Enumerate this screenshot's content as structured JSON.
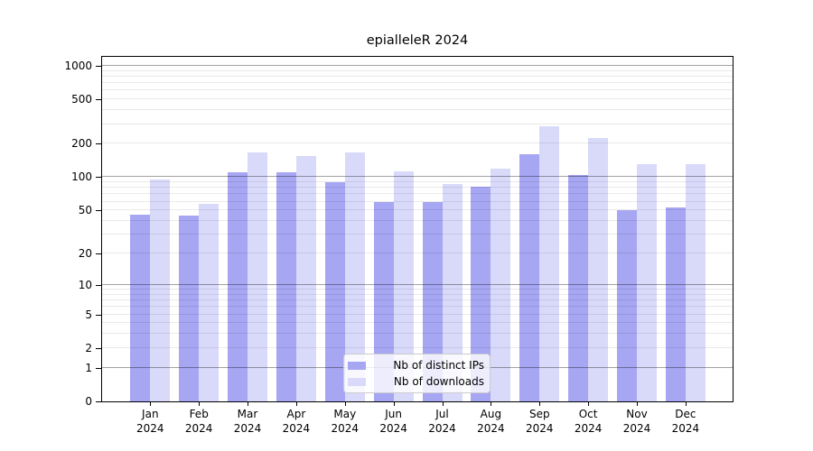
{
  "chart_data": {
    "type": "bar",
    "title": "epialleleR 2024",
    "categories": [
      "Jan",
      "Feb",
      "Mar",
      "Apr",
      "May",
      "Jun",
      "Jul",
      "Aug",
      "Sep",
      "Oct",
      "Nov",
      "Dec"
    ],
    "x_tick_second_line": "2024",
    "series": [
      {
        "name": "Nb of distinct IPs",
        "color": "#a6a6f2",
        "values": [
          46,
          45,
          110,
          110,
          90,
          60,
          60,
          82,
          160,
          105,
          50,
          53
        ]
      },
      {
        "name": "Nb of downloads",
        "color": "#d9d9fa",
        "values": [
          96,
          57,
          168,
          156,
          168,
          113,
          86,
          120,
          285,
          225,
          130,
          131
        ]
      }
    ],
    "y_axis": {
      "scale": "log1p",
      "tick_values": [
        0,
        1,
        2,
        5,
        10,
        20,
        50,
        100,
        200,
        500,
        1000
      ],
      "major_grid_values": [
        1,
        10,
        100,
        1000
      ],
      "minor_grid_values": [
        2,
        3,
        4,
        5,
        6,
        7,
        8,
        9,
        20,
        30,
        40,
        50,
        60,
        70,
        80,
        90,
        200,
        300,
        400,
        500,
        600,
        700,
        800,
        900
      ],
      "ylim": [
        0,
        1200
      ]
    },
    "legend": {
      "position": "lower center"
    },
    "grid": true
  }
}
